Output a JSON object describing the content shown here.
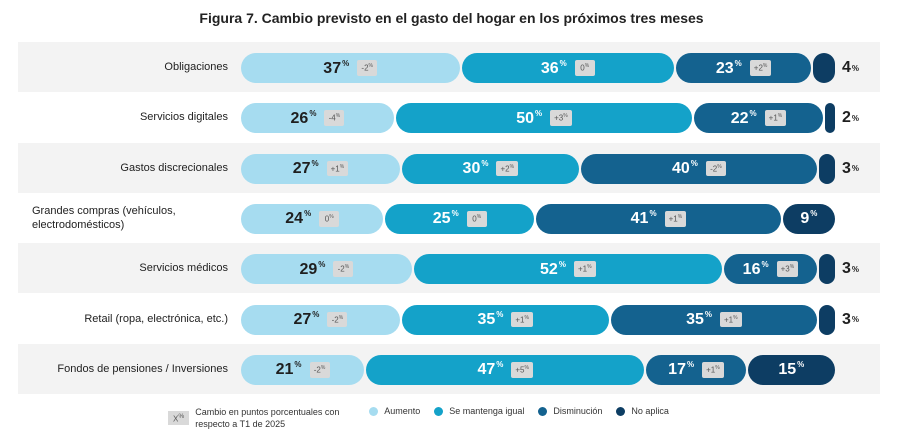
{
  "title": "Figura 7. Cambio previsto en el gasto del hogar en los próximos tres meses",
  "colors": {
    "aumento": "#a6dcf0",
    "mantenga": "#14a2c9",
    "disminucion": "#14628f",
    "no_aplica": "#0d3d63"
  },
  "legend": {
    "box_label": "X",
    "box_sup": "%",
    "note": "Cambio en puntos porcentuales con respecto a T1 de 2025",
    "items": [
      "Aumento",
      "Se mantenga igual",
      "Disminución",
      "No aplica"
    ]
  },
  "chart_data": {
    "type": "bar",
    "orientation": "horizontal-stacked-100",
    "title": "Figura 7. Cambio previsto en el gasto del hogar en los próximos tres meses",
    "series_names": [
      "Aumento",
      "Se mantenga igual",
      "Disminución",
      "No aplica"
    ],
    "unit_sup": "%",
    "rows": [
      {
        "label": "Obligaciones",
        "values": [
          37,
          36,
          23,
          4
        ],
        "deltas": [
          "-2",
          "0",
          "+2",
          null
        ]
      },
      {
        "label": "Servicios digitales",
        "values": [
          26,
          50,
          22,
          2
        ],
        "deltas": [
          "-4",
          "+3",
          "+1",
          null
        ]
      },
      {
        "label": "Gastos discrecionales",
        "values": [
          27,
          30,
          40,
          3
        ],
        "deltas": [
          "+1",
          "+2",
          "-2",
          null
        ]
      },
      {
        "label": "Grandes compras  (vehículos, electrodomésticos)",
        "values": [
          24,
          25,
          41,
          9
        ],
        "deltas": [
          "0",
          "0",
          "+1",
          null
        ]
      },
      {
        "label": "Servicios médicos",
        "values": [
          29,
          52,
          16,
          3
        ],
        "deltas": [
          "-2",
          "+1",
          "+3",
          null
        ]
      },
      {
        "label": "Retail (ropa, electrónica, etc.)",
        "values": [
          27,
          35,
          35,
          3
        ],
        "deltas": [
          "-2",
          "+1",
          "+1",
          null
        ]
      },
      {
        "label": "Fondos de pensiones / Inversiones",
        "values": [
          21,
          47,
          17,
          15
        ],
        "deltas": [
          "-2",
          "+5",
          "+1",
          null
        ]
      }
    ]
  }
}
